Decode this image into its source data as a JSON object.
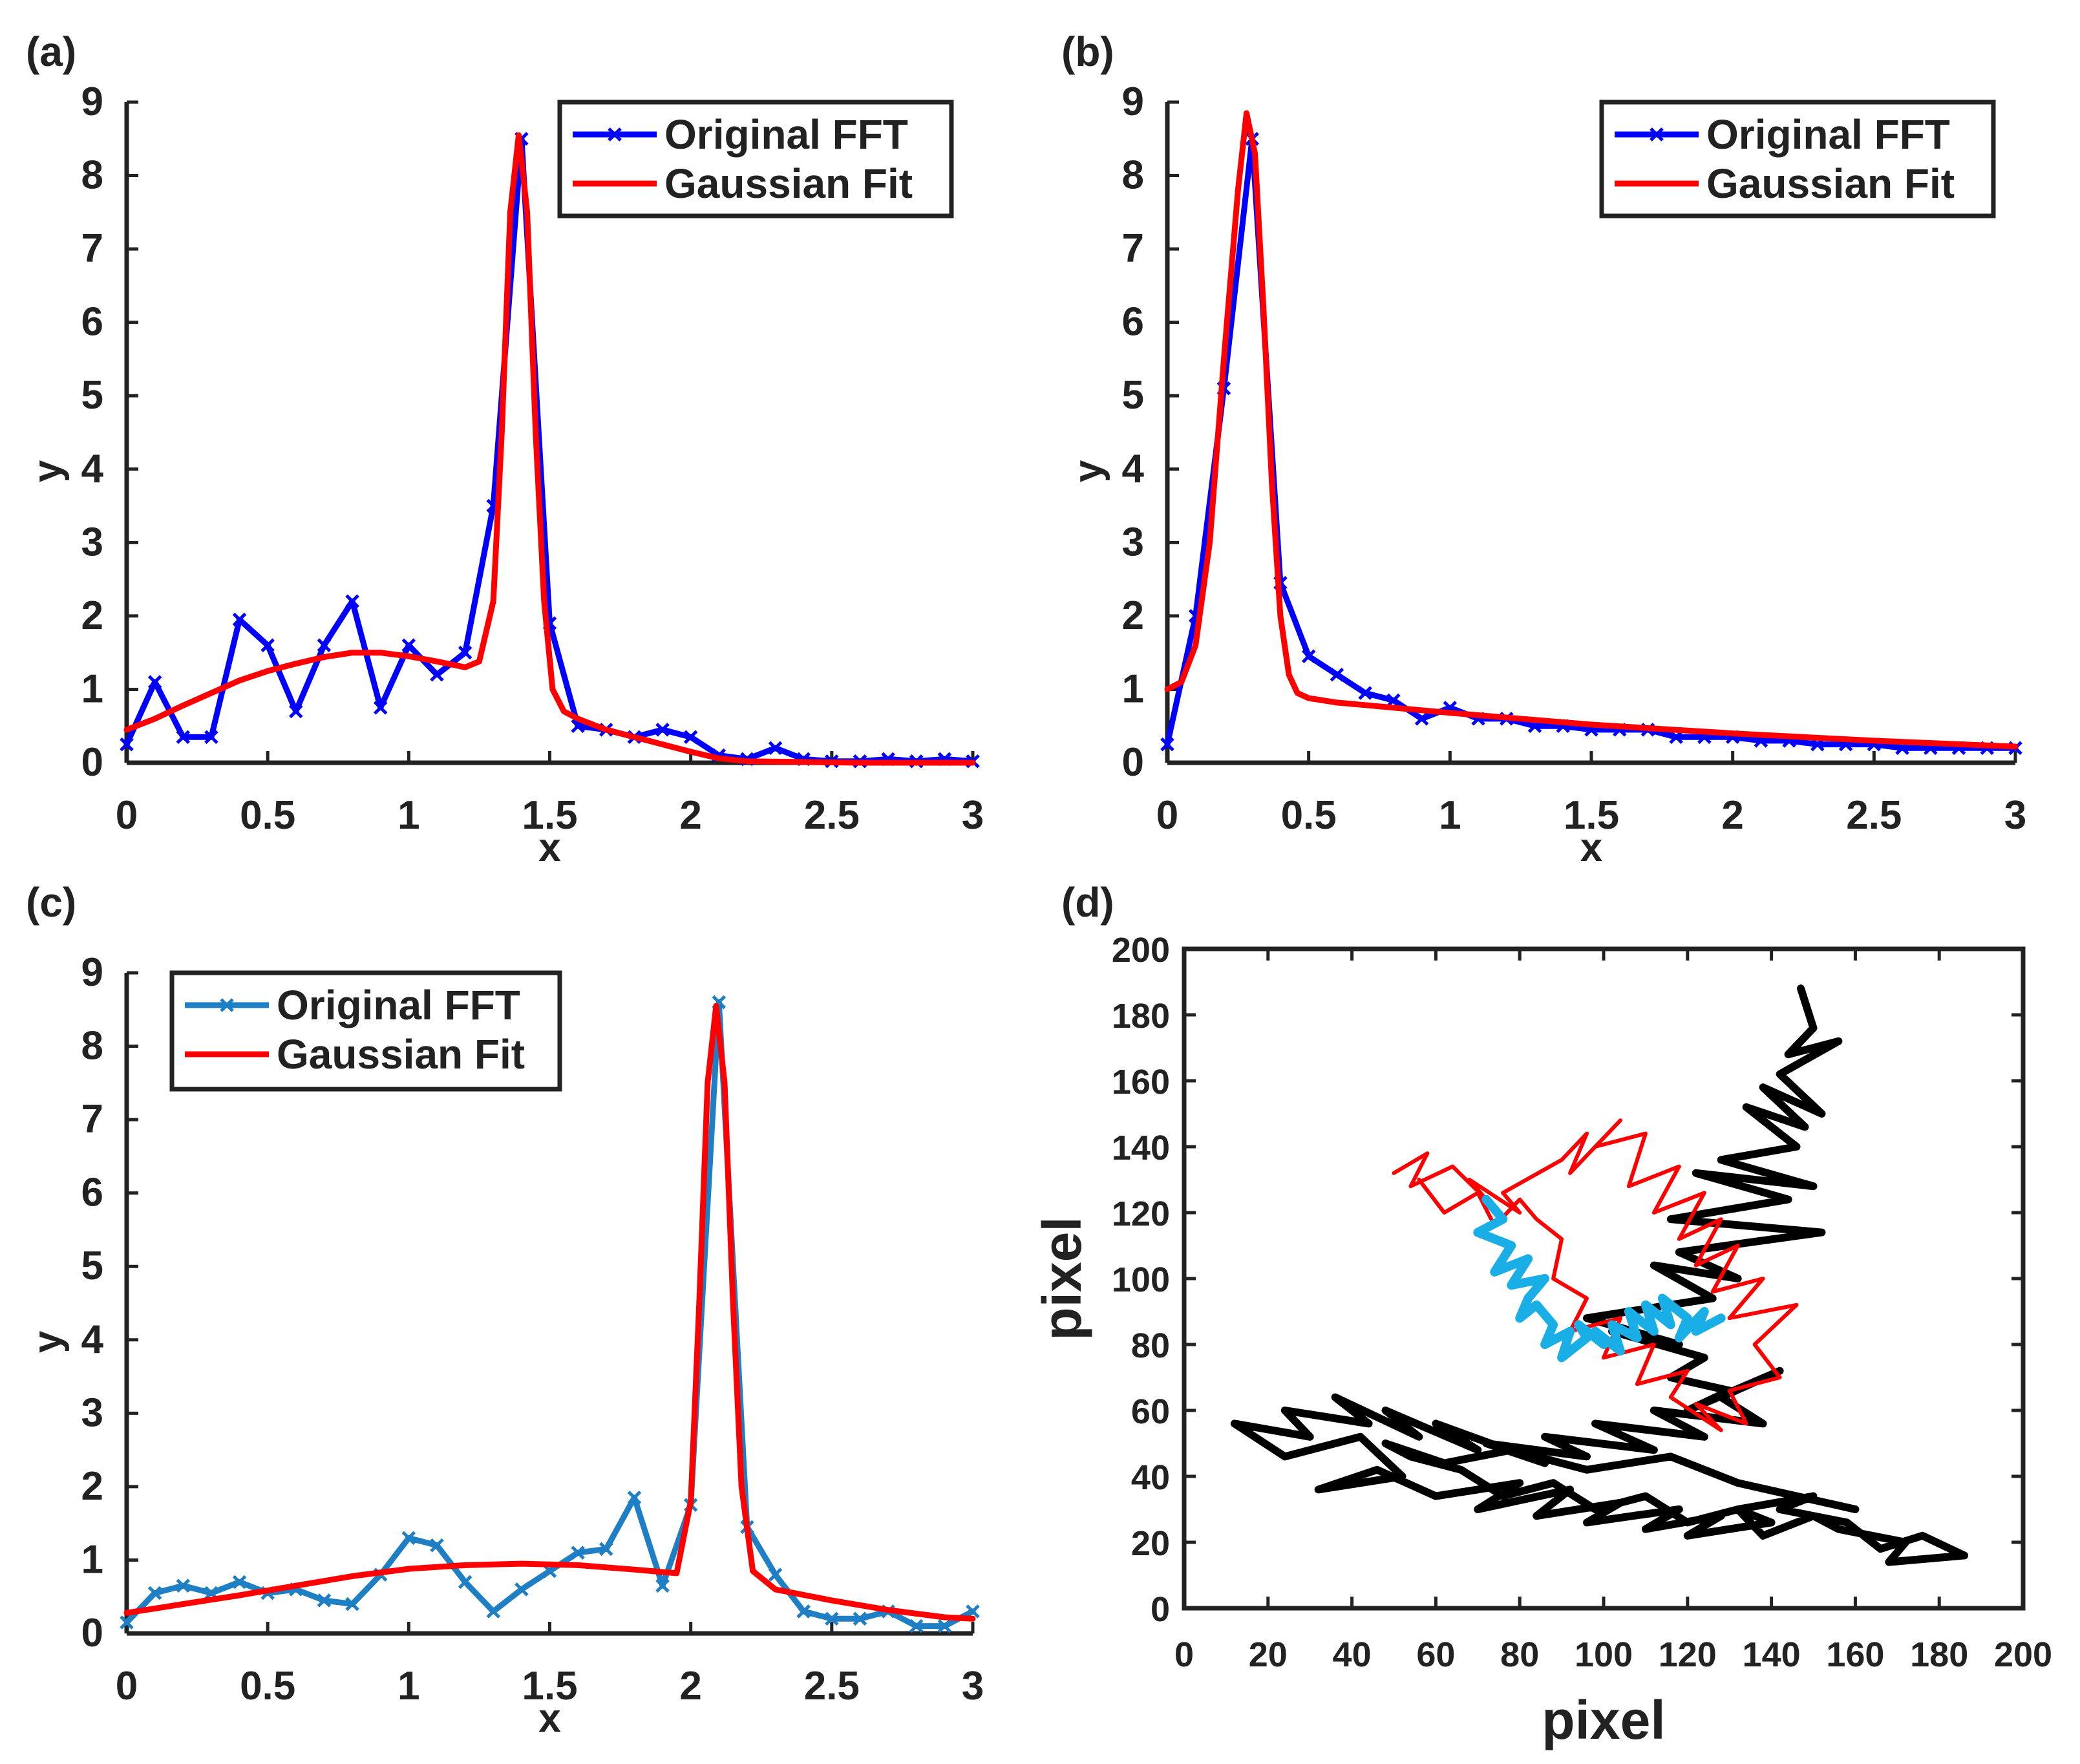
{
  "colors": {
    "original_blue": "#0000ff",
    "original_lightblue": "#1f7fc4",
    "gaussian_red": "#ff0000",
    "walk_black": "#000000",
    "walk_red": "#ff0000",
    "walk_cyan": "#1aaee6",
    "axis": "#222222"
  },
  "chart_data": [
    {
      "id": "a",
      "panel_label": "(a)",
      "type": "line",
      "xlabel": "x",
      "ylabel": "y",
      "xlim": [
        0,
        3
      ],
      "ylim": [
        0,
        9
      ],
      "xticks": [
        0,
        0.5,
        1,
        1.5,
        2,
        2.5,
        3
      ],
      "xtick_labels": [
        "0",
        "0.5",
        "1",
        "1.5",
        "2",
        "2.5",
        "3"
      ],
      "yticks": [
        0,
        1,
        2,
        3,
        4,
        5,
        6,
        7,
        8,
        9
      ],
      "ytick_labels": [
        "0",
        "1",
        "2",
        "3",
        "4",
        "5",
        "6",
        "7",
        "8",
        "9"
      ],
      "legend": {
        "position": "top-right",
        "entries": [
          "Original FFT",
          "Gaussian Fit"
        ]
      },
      "series": [
        {
          "name": "Original FFT",
          "color": "#0000ff",
          "marker": "x",
          "x": [
            0,
            0.1,
            0.2,
            0.3,
            0.4,
            0.5,
            0.6,
            0.7,
            0.8,
            0.9,
            1.0,
            1.1,
            1.2,
            1.3,
            1.4,
            1.5,
            1.6,
            1.7,
            1.8,
            1.9,
            2.0,
            2.1,
            2.2,
            2.3,
            2.4,
            2.5,
            2.6,
            2.7,
            2.8,
            2.9,
            3.0
          ],
          "y": [
            0.25,
            1.1,
            0.35,
            0.35,
            1.95,
            1.6,
            0.7,
            1.6,
            2.2,
            0.75,
            1.6,
            1.2,
            1.5,
            3.5,
            8.5,
            1.9,
            0.5,
            0.45,
            0.35,
            0.45,
            0.35,
            0.1,
            0.05,
            0.2,
            0.05,
            0.02,
            0.02,
            0.05,
            0.02,
            0.05,
            0.02
          ]
        },
        {
          "name": "Gaussian Fit",
          "color": "#ff0000",
          "x": [
            0,
            0.1,
            0.2,
            0.3,
            0.4,
            0.5,
            0.6,
            0.7,
            0.8,
            0.9,
            1.0,
            1.1,
            1.15,
            1.2,
            1.25,
            1.3,
            1.33,
            1.36,
            1.39,
            1.42,
            1.45,
            1.48,
            1.51,
            1.55,
            1.6,
            1.7,
            1.8,
            1.9,
            2.0,
            2.1,
            2.2,
            2.4,
            2.6,
            2.8,
            3.0
          ],
          "y": [
            0.45,
            0.6,
            0.78,
            0.95,
            1.12,
            1.25,
            1.35,
            1.44,
            1.5,
            1.5,
            1.45,
            1.38,
            1.34,
            1.3,
            1.38,
            2.2,
            4.5,
            7.5,
            8.55,
            7.5,
            4.5,
            2.2,
            1.0,
            0.7,
            0.6,
            0.45,
            0.35,
            0.25,
            0.15,
            0.06,
            0.02,
            0.01,
            0.0,
            0.0,
            0.0
          ]
        }
      ]
    },
    {
      "id": "b",
      "panel_label": "(b)",
      "type": "line",
      "xlabel": "x",
      "ylabel": "y",
      "xlim": [
        0,
        3
      ],
      "ylim": [
        0,
        9
      ],
      "xticks": [
        0,
        0.5,
        1,
        1.5,
        2,
        2.5,
        3
      ],
      "xtick_labels": [
        "0",
        "0.5",
        "1",
        "1.5",
        "2",
        "2.5",
        "3"
      ],
      "yticks": [
        0,
        1,
        2,
        3,
        4,
        5,
        6,
        7,
        8,
        9
      ],
      "ytick_labels": [
        "0",
        "1",
        "2",
        "3",
        "4",
        "5",
        "6",
        "7",
        "8",
        "9"
      ],
      "legend": {
        "position": "top-right",
        "entries": [
          "Original FFT",
          "Gaussian Fit"
        ]
      },
      "series": [
        {
          "name": "Original FFT",
          "color": "#0000ff",
          "marker": "x",
          "x": [
            0,
            0.1,
            0.2,
            0.3,
            0.4,
            0.5,
            0.6,
            0.7,
            0.8,
            0.9,
            1.0,
            1.1,
            1.2,
            1.3,
            1.4,
            1.5,
            1.6,
            1.7,
            1.8,
            1.9,
            2.0,
            2.1,
            2.2,
            2.3,
            2.4,
            2.5,
            2.6,
            2.7,
            2.8,
            2.9,
            3.0
          ],
          "y": [
            0.25,
            2.0,
            5.1,
            8.5,
            2.45,
            1.45,
            1.2,
            0.95,
            0.85,
            0.6,
            0.75,
            0.6,
            0.6,
            0.5,
            0.5,
            0.45,
            0.45,
            0.45,
            0.35,
            0.35,
            0.35,
            0.3,
            0.3,
            0.25,
            0.25,
            0.25,
            0.2,
            0.2,
            0.2,
            0.2,
            0.2
          ]
        },
        {
          "name": "Gaussian Fit",
          "color": "#ff0000",
          "x": [
            0,
            0.05,
            0.1,
            0.15,
            0.2,
            0.25,
            0.28,
            0.31,
            0.34,
            0.37,
            0.4,
            0.43,
            0.46,
            0.5,
            0.6,
            0.8,
            1.0,
            1.5,
            2.0,
            2.5,
            3.0
          ],
          "y": [
            1.0,
            1.1,
            1.6,
            3.0,
            5.5,
            7.8,
            8.85,
            8.3,
            6.2,
            3.8,
            2.0,
            1.2,
            0.95,
            0.88,
            0.82,
            0.75,
            0.68,
            0.52,
            0.4,
            0.3,
            0.22
          ]
        }
      ]
    },
    {
      "id": "c",
      "panel_label": "(c)",
      "type": "line",
      "xlabel": "x",
      "ylabel": "y",
      "xlim": [
        0,
        3
      ],
      "ylim": [
        0,
        9
      ],
      "xticks": [
        0,
        0.5,
        1,
        1.5,
        2,
        2.5,
        3
      ],
      "xtick_labels": [
        "0",
        "0.5",
        "1",
        "1.5",
        "2",
        "2.5",
        "3"
      ],
      "yticks": [
        0,
        1,
        2,
        3,
        4,
        5,
        6,
        7,
        8,
        9
      ],
      "ytick_labels": [
        "0",
        "1",
        "2",
        "3",
        "4",
        "5",
        "6",
        "7",
        "8",
        "9"
      ],
      "legend": {
        "position": "top-left",
        "entries": [
          "Original FFT",
          "Gaussian Fit"
        ]
      },
      "series": [
        {
          "name": "Original FFT",
          "color": "#1f7fc4",
          "marker": "x",
          "x": [
            0,
            0.1,
            0.2,
            0.3,
            0.4,
            0.5,
            0.6,
            0.7,
            0.8,
            0.9,
            1.0,
            1.1,
            1.2,
            1.3,
            1.4,
            1.5,
            1.6,
            1.7,
            1.8,
            1.9,
            2.0,
            2.1,
            2.2,
            2.3,
            2.4,
            2.5,
            2.6,
            2.7,
            2.8,
            2.9,
            3.0
          ],
          "y": [
            0.15,
            0.55,
            0.65,
            0.55,
            0.7,
            0.55,
            0.6,
            0.45,
            0.4,
            0.8,
            1.3,
            1.2,
            0.7,
            0.3,
            0.6,
            0.85,
            1.1,
            1.15,
            1.85,
            0.65,
            1.75,
            8.6,
            1.45,
            0.8,
            0.3,
            0.2,
            0.2,
            0.3,
            0.1,
            0.1,
            0.3
          ]
        },
        {
          "name": "Gaussian Fit",
          "color": "#ff0000",
          "x": [
            0,
            0.2,
            0.4,
            0.6,
            0.8,
            1.0,
            1.2,
            1.4,
            1.6,
            1.8,
            1.95,
            2.0,
            2.03,
            2.06,
            2.09,
            2.12,
            2.15,
            2.18,
            2.22,
            2.3,
            2.5,
            2.7,
            2.9,
            3.0
          ],
          "y": [
            0.28,
            0.4,
            0.52,
            0.65,
            0.78,
            0.88,
            0.93,
            0.95,
            0.93,
            0.87,
            0.82,
            1.8,
            4.5,
            7.5,
            8.55,
            7.5,
            4.5,
            2.0,
            0.85,
            0.6,
            0.45,
            0.32,
            0.22,
            0.2
          ]
        }
      ]
    },
    {
      "id": "d",
      "panel_label": "(d)",
      "type": "line",
      "xlabel": "pixel",
      "ylabel": "pixel",
      "xlim": [
        0,
        200
      ],
      "ylim": [
        0,
        200
      ],
      "xticks": [
        0,
        20,
        40,
        60,
        80,
        100,
        120,
        140,
        160,
        180,
        200
      ],
      "xtick_labels": [
        "0",
        "20",
        "40",
        "60",
        "80",
        "100",
        "120",
        "140",
        "160",
        "180",
        "200"
      ],
      "yticks": [
        0,
        20,
        40,
        60,
        80,
        100,
        120,
        140,
        160,
        180,
        200
      ],
      "ytick_labels": [
        "0",
        "20",
        "40",
        "60",
        "80",
        "100",
        "120",
        "140",
        "160",
        "180",
        "200"
      ],
      "series": [
        {
          "name": "trajectory-black",
          "color": "#000000",
          "x": [
            147,
            150,
            144,
            156,
            142,
            152,
            138,
            148,
            134,
            146,
            128,
            150,
            122,
            144,
            116,
            152,
            118,
            132,
            112,
            126,
            96,
            118,
            102,
            124,
            116,
            130,
            120,
            142,
            128,
            138,
            112,
            124,
            98,
            112,
            86,
            96,
            72,
            86,
            60,
            70,
            48,
            56,
            36,
            44,
            24,
            30,
            12,
            24,
            42,
            52,
            32,
            46,
            60,
            80,
            70,
            92,
            84,
            104,
            96,
            118,
            110,
            128,
            120,
            140,
            132,
            150,
            142,
            158,
            166,
            176,
            186,
            168,
            172,
            156,
            150,
            138,
            132,
            120,
            110,
            98,
            88,
            76,
            66,
            54,
            48,
            62,
            78,
            96,
            116,
            132,
            146,
            160
          ],
          "y": [
            188,
            176,
            168,
            172,
            162,
            150,
            158,
            146,
            152,
            140,
            136,
            128,
            132,
            124,
            118,
            114,
            108,
            100,
            104,
            94,
            88,
            80,
            84,
            76,
            70,
            66,
            60,
            72,
            64,
            56,
            60,
            52,
            56,
            48,
            52,
            46,
            50,
            44,
            56,
            48,
            60,
            52,
            64,
            56,
            60,
            52,
            56,
            46,
            52,
            40,
            36,
            42,
            34,
            38,
            30,
            36,
            28,
            32,
            26,
            30,
            24,
            28,
            22,
            26,
            30,
            34,
            30,
            26,
            18,
            22,
            16,
            14,
            20,
            24,
            28,
            22,
            30,
            26,
            34,
            30,
            38,
            34,
            42,
            46,
            50,
            44,
            48,
            42,
            46,
            38,
            34,
            30
          ]
        },
        {
          "name": "trajectory-red",
          "color": "#ff0000",
          "x": [
            50,
            58,
            54,
            64,
            72,
            68,
            80,
            76,
            90,
            96,
            92,
            104,
            98,
            110,
            106,
            118,
            112,
            124,
            118,
            128,
            122,
            132,
            126,
            138,
            130,
            146,
            136,
            142,
            130,
            134,
            122,
            128,
            116,
            120,
            108,
            112,
            100,
            104,
            92,
            96,
            88,
            90,
            84,
            80,
            74,
            70,
            62,
            56
          ],
          "y": [
            132,
            138,
            128,
            134,
            124,
            130,
            120,
            126,
            136,
            144,
            132,
            148,
            140,
            144,
            128,
            134,
            120,
            126,
            112,
            118,
            104,
            110,
            96,
            100,
            88,
            92,
            80,
            70,
            66,
            56,
            62,
            54,
            64,
            72,
            68,
            80,
            76,
            88,
            84,
            94,
            100,
            112,
            118,
            124,
            116,
            126,
            120,
            130
          ]
        },
        {
          "name": "trajectory-cyan",
          "color": "#1aaee6",
          "x": [
            72,
            76,
            70,
            78,
            74,
            82,
            78,
            86,
            82,
            80,
            84,
            88,
            86,
            92,
            90,
            96,
            94,
            100,
            98,
            104,
            102,
            108,
            106,
            112,
            110,
            116,
            114,
            120,
            118,
            124,
            122,
            128
          ],
          "y": [
            124,
            118,
            114,
            110,
            102,
            106,
            98,
            100,
            94,
            88,
            92,
            86,
            80,
            84,
            76,
            82,
            86,
            80,
            84,
            78,
            86,
            82,
            90,
            84,
            92,
            86,
            94,
            88,
            82,
            90,
            84,
            88
          ]
        }
      ]
    }
  ]
}
